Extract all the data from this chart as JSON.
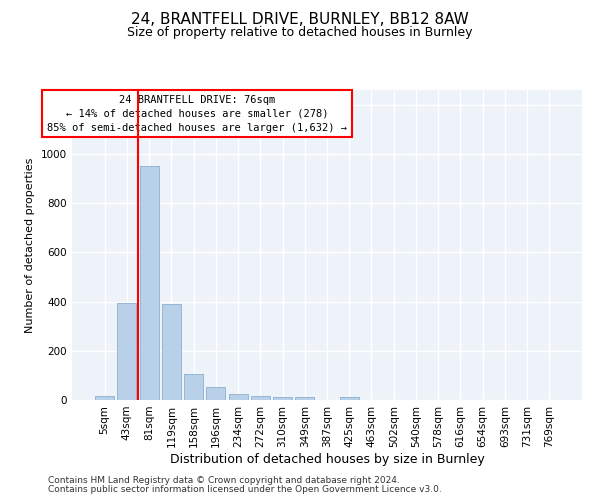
{
  "title1": "24, BRANTFELL DRIVE, BURNLEY, BB12 8AW",
  "title2": "Size of property relative to detached houses in Burnley",
  "xlabel": "Distribution of detached houses by size in Burnley",
  "ylabel": "Number of detached properties",
  "footnote1": "Contains HM Land Registry data © Crown copyright and database right 2024.",
  "footnote2": "Contains public sector information licensed under the Open Government Licence v3.0.",
  "annotation_line1": "24 BRANTFELL DRIVE: 76sqm",
  "annotation_line2": "← 14% of detached houses are smaller (278)",
  "annotation_line3": "85% of semi-detached houses are larger (1,632) →",
  "bar_color": "#b8d0e8",
  "bar_edge_color": "#8aafd4",
  "vline_color": "red",
  "annotation_box_color": "red",
  "categories": [
    "5sqm",
    "43sqm",
    "81sqm",
    "119sqm",
    "158sqm",
    "196sqm",
    "234sqm",
    "272sqm",
    "310sqm",
    "349sqm",
    "387sqm",
    "425sqm",
    "463sqm",
    "502sqm",
    "540sqm",
    "578sqm",
    "616sqm",
    "654sqm",
    "693sqm",
    "731sqm",
    "769sqm"
  ],
  "values": [
    18,
    395,
    950,
    390,
    105,
    52,
    25,
    18,
    13,
    14,
    0,
    12,
    0,
    0,
    0,
    0,
    0,
    0,
    0,
    0,
    0
  ],
  "ylim": [
    0,
    1260
  ],
  "yticks": [
    0,
    200,
    400,
    600,
    800,
    1000,
    1200
  ],
  "vline_x_index": 1.5,
  "bg_color": "#eef2f9",
  "grid_color": "#ffffff",
  "title1_fontsize": 11,
  "title2_fontsize": 9,
  "xlabel_fontsize": 9,
  "ylabel_fontsize": 8,
  "tick_fontsize": 7.5,
  "annotation_fontsize": 7.5,
  "footnote_fontsize": 6.5
}
